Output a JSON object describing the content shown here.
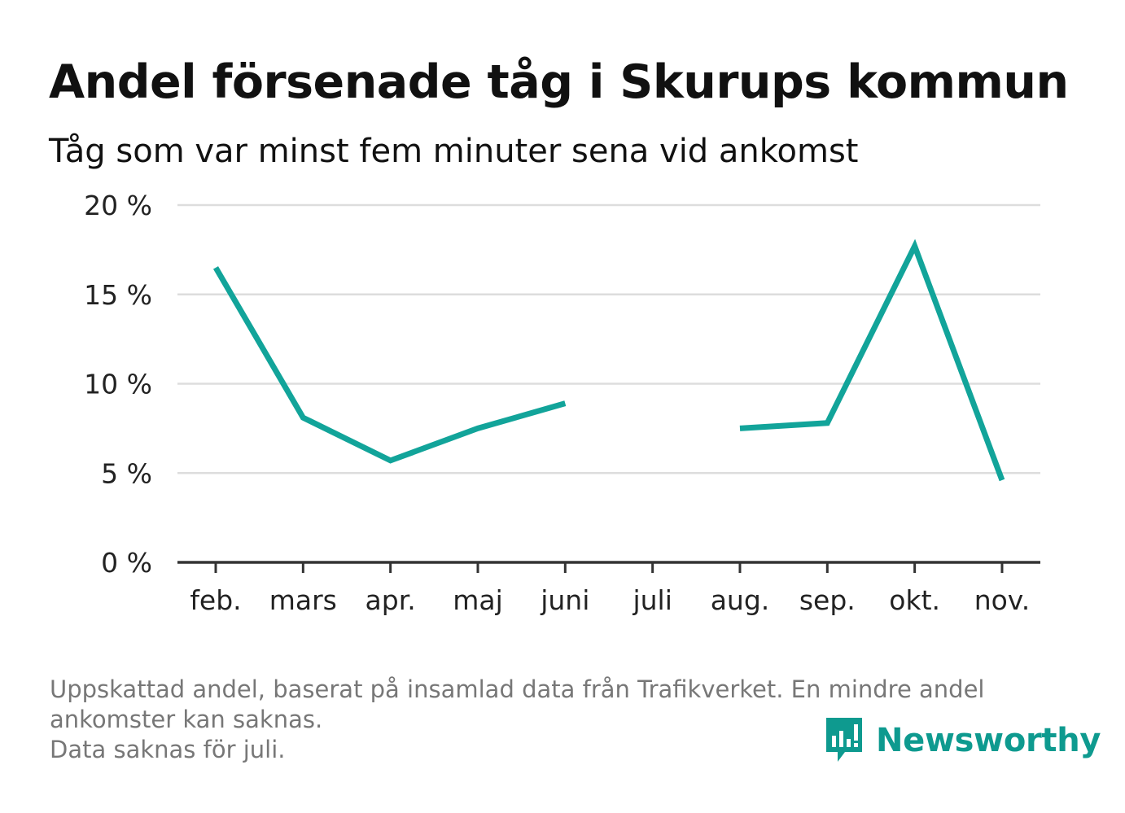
{
  "title": "Andel försenade tåg i Skurups kommun",
  "subtitle": "Tåg som var minst fem minuter sena vid ankomst",
  "notes": {
    "line1": "Uppskattad andel, baserat på insamlad data från Trafikverket. En mindre andel",
    "line2": "ankomster kan saknas.",
    "line3": "Data saknas för juli."
  },
  "brand": {
    "name": "Newsworthy",
    "icon": "newsworthy-logo-icon",
    "color": "#0e9a8f"
  },
  "chart_data": {
    "type": "line",
    "categories": [
      "feb.",
      "mars",
      "apr.",
      "maj",
      "juni",
      "juli",
      "aug.",
      "sep.",
      "okt.",
      "nov."
    ],
    "series": [
      {
        "values": [
          16.5,
          8.1,
          5.7,
          7.5,
          8.9,
          null,
          7.5,
          7.8,
          17.7,
          4.6
        ],
        "color": "#12a49a"
      }
    ],
    "ylim": [
      0,
      20
    ],
    "yticks": [
      0,
      5,
      10,
      15,
      20
    ],
    "ytick_labels": [
      "0 %",
      "5 %",
      "10 %",
      "15 %",
      "20 %"
    ],
    "grid": true,
    "grid_color": "#dddddd",
    "axis_color": "#333333"
  }
}
